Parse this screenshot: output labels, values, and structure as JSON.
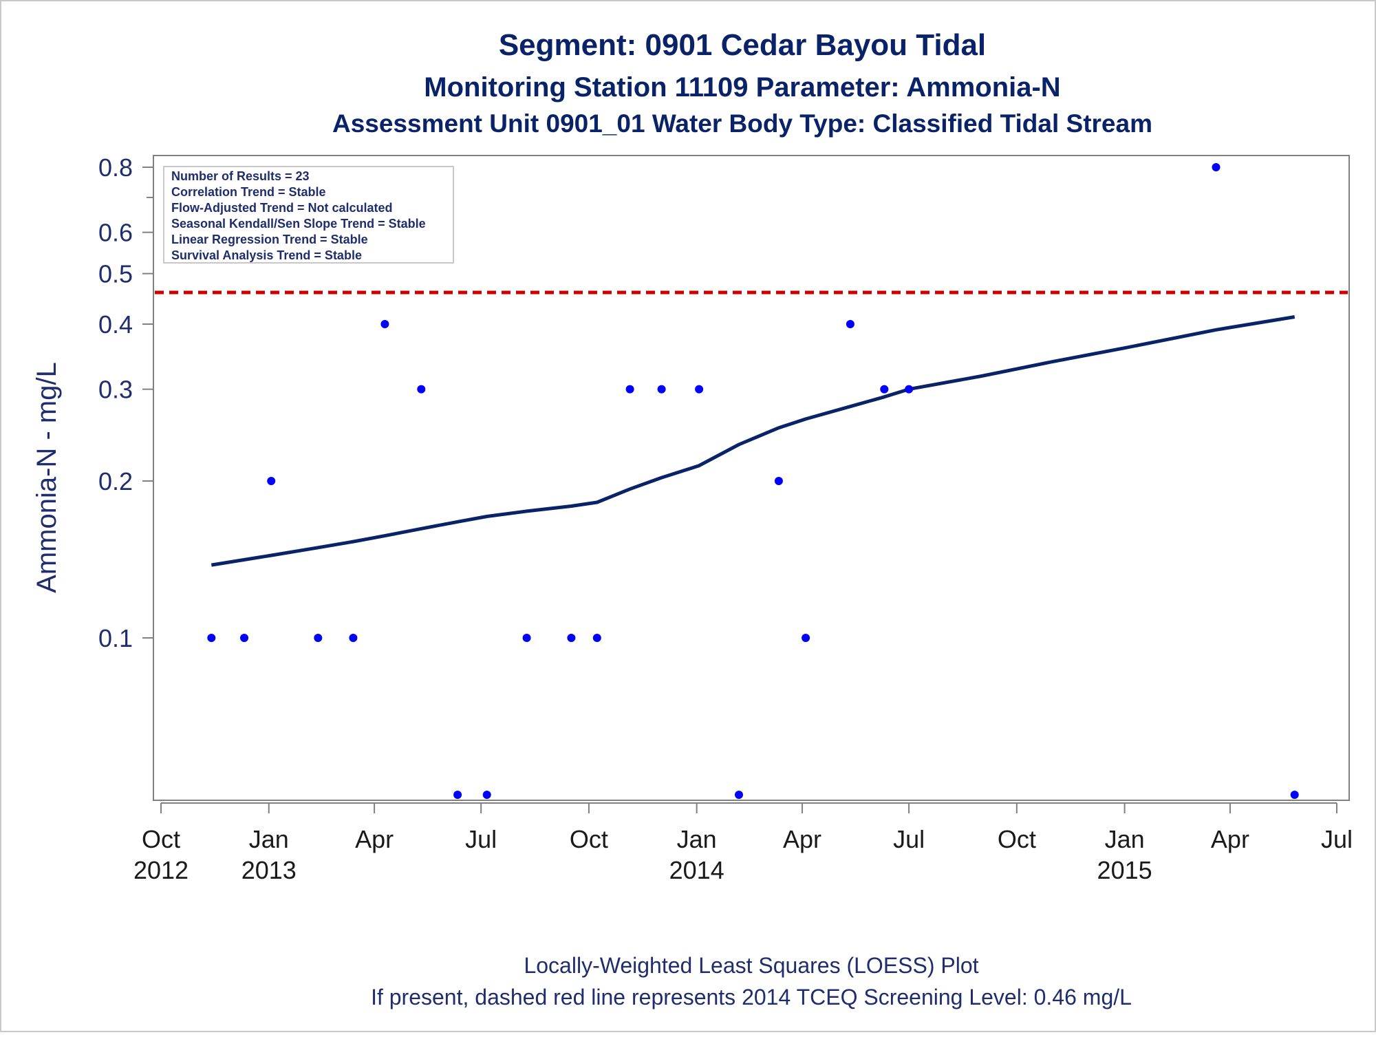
{
  "titles": {
    "line1": "Segment: 0901  Cedar Bayou Tidal",
    "line2": "Monitoring Station 11109 Parameter: Ammonia-N",
    "line3": "Assessment Unit 0901_01   Water Body Type: Classified Tidal Stream"
  },
  "footnotes": {
    "line1": "Locally-Weighted Least Squares (LOESS) Plot",
    "line2": "If present, dashed red line represents 2014 TCEQ Screening Level: 0.46 mg/L"
  },
  "colors": {
    "text": "#1f2d6e",
    "points": "#0000ff",
    "loess": "#0a2368",
    "screening": "#cc0000",
    "axis": "#808080"
  },
  "chart_data": {
    "type": "scatter",
    "ylabel": "Ammonia-N - mg/L",
    "y_scale": "log",
    "ylim": [
      0.05,
      0.8
    ],
    "xlim": [
      "2012-10-01",
      "2015-07-01"
    ],
    "y_ticks": [
      {
        "value": 0.1,
        "label": "0.1",
        "major": true
      },
      {
        "value": 0.2,
        "label": "0.2",
        "major": true
      },
      {
        "value": 0.3,
        "label": "0.3",
        "major": true
      },
      {
        "value": 0.4,
        "label": "0.4",
        "major": true
      },
      {
        "value": 0.5,
        "label": "0.5",
        "major": true
      },
      {
        "value": 0.6,
        "label": "0.6",
        "major": true
      },
      {
        "value": 0.7,
        "label": "",
        "major": false
      },
      {
        "value": 0.8,
        "label": "0.8",
        "major": true
      }
    ],
    "x_ticks": [
      {
        "date": "2012-10-01",
        "line1": "Oct",
        "line2": "2012"
      },
      {
        "date": "2013-01-01",
        "line1": "Jan",
        "line2": "2013"
      },
      {
        "date": "2013-04-01",
        "line1": "Apr",
        "line2": ""
      },
      {
        "date": "2013-07-01",
        "line1": "Jul",
        "line2": ""
      },
      {
        "date": "2013-10-01",
        "line1": "Oct",
        "line2": ""
      },
      {
        "date": "2014-01-01",
        "line1": "Jan",
        "line2": "2014"
      },
      {
        "date": "2014-04-01",
        "line1": "Apr",
        "line2": ""
      },
      {
        "date": "2014-07-01",
        "line1": "Jul",
        "line2": ""
      },
      {
        "date": "2014-10-01",
        "line1": "Oct",
        "line2": ""
      },
      {
        "date": "2015-01-01",
        "line1": "Jan",
        "line2": "2015"
      },
      {
        "date": "2015-04-01",
        "line1": "Apr",
        "line2": ""
      },
      {
        "date": "2015-07-01",
        "line1": "Jul",
        "line2": ""
      }
    ],
    "stats_box": [
      "Number of Results = 23",
      "Correlation Trend = Stable",
      "Flow-Adjusted Trend = Not calculated",
      "Seasonal Kendall/Sen Slope Trend = Stable",
      "Linear Regression Trend = Stable",
      "Survival Analysis Trend = Stable"
    ],
    "screening_level": 0.46,
    "points": [
      {
        "date": "2012-11-13",
        "value": 0.1
      },
      {
        "date": "2012-12-11",
        "value": 0.1
      },
      {
        "date": "2013-01-03",
        "value": 0.2
      },
      {
        "date": "2013-02-12",
        "value": 0.1
      },
      {
        "date": "2013-03-14",
        "value": 0.1
      },
      {
        "date": "2013-04-10",
        "value": 0.4
      },
      {
        "date": "2013-05-11",
        "value": 0.3
      },
      {
        "date": "2013-06-11",
        "value": 0.05
      },
      {
        "date": "2013-07-06",
        "value": 0.05
      },
      {
        "date": "2013-08-09",
        "value": 0.1
      },
      {
        "date": "2013-09-16",
        "value": 0.1
      },
      {
        "date": "2013-10-08",
        "value": 0.1
      },
      {
        "date": "2013-11-05",
        "value": 0.3
      },
      {
        "date": "2013-12-02",
        "value": 0.3
      },
      {
        "date": "2014-01-03",
        "value": 0.3
      },
      {
        "date": "2014-02-06",
        "value": 0.05
      },
      {
        "date": "2014-03-12",
        "value": 0.2
      },
      {
        "date": "2014-04-04",
        "value": 0.1
      },
      {
        "date": "2014-05-12",
        "value": 0.4
      },
      {
        "date": "2014-06-10",
        "value": 0.3
      },
      {
        "date": "2014-07-01",
        "value": 0.3
      },
      {
        "date": "2015-03-20",
        "value": 0.8
      },
      {
        "date": "2015-05-26",
        "value": 0.05
      }
    ],
    "loess": [
      {
        "date": "2012-11-13",
        "value": 0.138
      },
      {
        "date": "2013-01-03",
        "value": 0.144
      },
      {
        "date": "2013-02-12",
        "value": 0.149
      },
      {
        "date": "2013-03-14",
        "value": 0.153
      },
      {
        "date": "2013-04-10",
        "value": 0.157
      },
      {
        "date": "2013-05-11",
        "value": 0.162
      },
      {
        "date": "2013-06-11",
        "value": 0.167
      },
      {
        "date": "2013-07-06",
        "value": 0.171
      },
      {
        "date": "2013-08-09",
        "value": 0.175
      },
      {
        "date": "2013-09-16",
        "value": 0.179
      },
      {
        "date": "2013-10-08",
        "value": 0.182
      },
      {
        "date": "2013-11-05",
        "value": 0.193
      },
      {
        "date": "2013-12-02",
        "value": 0.203
      },
      {
        "date": "2014-01-03",
        "value": 0.214
      },
      {
        "date": "2014-02-06",
        "value": 0.235
      },
      {
        "date": "2014-03-12",
        "value": 0.253
      },
      {
        "date": "2014-04-04",
        "value": 0.263
      },
      {
        "date": "2014-05-12",
        "value": 0.278
      },
      {
        "date": "2014-06-10",
        "value": 0.29
      },
      {
        "date": "2014-07-01",
        "value": 0.3
      },
      {
        "date": "2014-09-01",
        "value": 0.318
      },
      {
        "date": "2014-11-01",
        "value": 0.339
      },
      {
        "date": "2015-01-01",
        "value": 0.36
      },
      {
        "date": "2015-03-20",
        "value": 0.39
      },
      {
        "date": "2015-05-26",
        "value": 0.413
      }
    ]
  }
}
